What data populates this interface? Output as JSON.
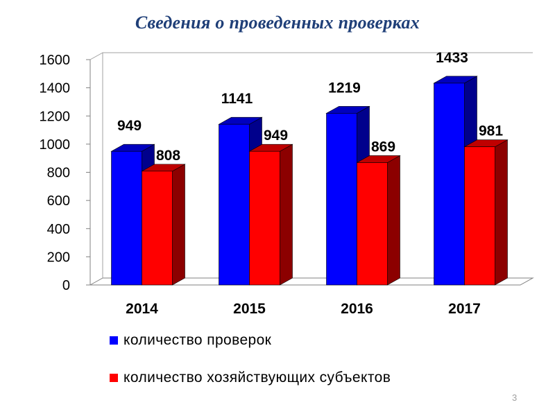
{
  "slide": {
    "title": "Сведения о проведенных проверках",
    "page_number": "3"
  },
  "chart_data": {
    "type": "bar",
    "categories": [
      "2014",
      "2015",
      "2016",
      "2017"
    ],
    "series": [
      {
        "name": "количество проверок",
        "values": [
          949,
          1141,
          1219,
          1433
        ],
        "color": "#0000ff"
      },
      {
        "name": "количество хозяйствующих субъектов",
        "values": [
          808,
          949,
          869,
          981
        ],
        "color": "#ff0000"
      }
    ],
    "ylim": [
      0,
      1600
    ],
    "yticks": [
      0,
      200,
      400,
      600,
      800,
      1000,
      1200,
      1400,
      1600
    ],
    "title": "",
    "xlabel": "",
    "ylabel": "",
    "grid": false,
    "legend_position": "bottom",
    "data_labels": true,
    "style": "3d"
  }
}
